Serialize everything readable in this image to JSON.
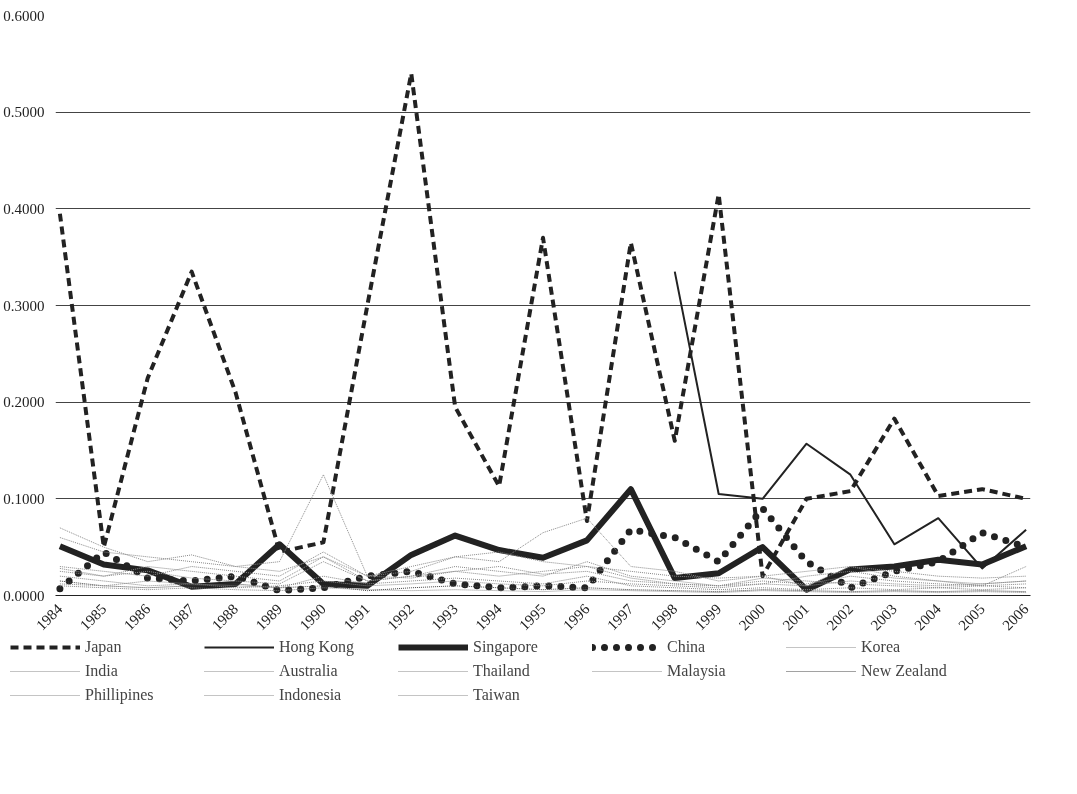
{
  "chart_data": {
    "type": "line",
    "categories": [
      "1984",
      "1985",
      "1986",
      "1987",
      "1988",
      "1989",
      "1990",
      "1991",
      "1992",
      "1993",
      "1994",
      "1995",
      "1996",
      "1997",
      "1998",
      "1999",
      "2000",
      "2001",
      "2002",
      "2003",
      "2004",
      "2005",
      "2006"
    ],
    "ylim": [
      0,
      0.6
    ],
    "yticks": [
      {
        "value": 0,
        "label": "0.0000"
      },
      {
        "value": 0.1,
        "label": "0.1000"
      },
      {
        "value": 0.2,
        "label": "0.2000"
      },
      {
        "value": 0.3,
        "label": "0.3000"
      },
      {
        "value": 0.4,
        "label": "0.4000"
      },
      {
        "value": 0.5,
        "label": "0.5000"
      },
      {
        "value": 0.6,
        "label": "0.6000"
      }
    ],
    "grid": "y",
    "legend": "bottom",
    "marker": "none",
    "series": [
      {
        "name": "Japan",
        "color": "#222222",
        "line_style": "dashed",
        "values": [
          0.395,
          0.05,
          0.225,
          0.335,
          0.21,
          0.045,
          0.055,
          0.3,
          0.54,
          0.195,
          0.113,
          0.37,
          0.077,
          0.365,
          0.16,
          0.415,
          0.02,
          0.1,
          0.108,
          0.183,
          0.103,
          0.11,
          0.1
        ]
      },
      {
        "name": "Hong Kong",
        "color": "#222222",
        "line_style": "solid",
        "values": [
          null,
          null,
          null,
          null,
          null,
          null,
          null,
          null,
          null,
          null,
          null,
          null,
          null,
          null,
          0.335,
          0.105,
          0.1,
          0.157,
          0.125,
          0.053,
          0.08,
          0.028,
          0.068
        ]
      },
      {
        "name": "Singapore",
        "color": "#222222",
        "line_style": "solid",
        "values": [
          0.051,
          0.032,
          0.026,
          0.009,
          0.012,
          0.053,
          0.012,
          0.01,
          0.042,
          0.062,
          0.047,
          0.039,
          0.057,
          0.11,
          0.018,
          0.023,
          0.05,
          0.006,
          0.027,
          0.03,
          0.037,
          0.032,
          0.051
        ]
      },
      {
        "name": "China",
        "color": "#222222",
        "line_style": "dotted",
        "values": [
          0.007,
          0.045,
          0.018,
          0.015,
          0.02,
          0.005,
          0.008,
          0.02,
          0.025,
          0.012,
          0.008,
          0.01,
          0.008,
          0.068,
          0.06,
          0.035,
          0.09,
          0.035,
          0.008,
          0.025,
          0.035,
          0.065,
          0.05
        ]
      },
      {
        "name": "Korea",
        "color": "#888888",
        "line_style": "dotted",
        "values": [
          0.07,
          0.05,
          0.035,
          0.042,
          0.03,
          0.035,
          0.125,
          0.02,
          0.025,
          0.04,
          0.035,
          0.065,
          0.08,
          0.03,
          0.025,
          0.015,
          0.02,
          0.01,
          0.03,
          0.02,
          0.015,
          0.01,
          0.03
        ]
      },
      {
        "name": "India",
        "color": "#888888",
        "line_style": "dotted",
        "values": [
          0.02,
          0.015,
          0.01,
          0.012,
          0.008,
          0.01,
          0.015,
          0.01,
          0.012,
          0.015,
          0.012,
          0.01,
          0.015,
          0.012,
          0.01,
          0.008,
          0.012,
          0.01,
          0.015,
          0.012,
          0.01,
          0.012,
          0.015
        ]
      },
      {
        "name": "Australia",
        "color": "#888888",
        "line_style": "dotted",
        "values": [
          0.06,
          0.045,
          0.04,
          0.035,
          0.03,
          0.025,
          0.04,
          0.02,
          0.03,
          0.04,
          0.045,
          0.035,
          0.03,
          0.025,
          0.02,
          0.018,
          0.02,
          0.025,
          0.03,
          0.025,
          0.02,
          0.018,
          0.02
        ]
      },
      {
        "name": "Thailand",
        "color": "#888888",
        "line_style": "dotted",
        "values": [
          0.025,
          0.02,
          0.03,
          0.025,
          0.02,
          0.015,
          0.04,
          0.015,
          0.02,
          0.03,
          0.025,
          0.02,
          0.035,
          0.02,
          0.015,
          0.01,
          0.015,
          0.012,
          0.02,
          0.015,
          0.012,
          0.01,
          0.012
        ]
      },
      {
        "name": "Malaysia",
        "color": "#888888",
        "line_style": "dotted",
        "values": [
          0.03,
          0.025,
          0.02,
          0.03,
          0.025,
          0.02,
          0.045,
          0.02,
          0.018,
          0.025,
          0.02,
          0.025,
          0.03,
          0.018,
          0.012,
          0.01,
          0.018,
          0.015,
          0.012,
          0.01,
          0.008,
          0.01,
          0.008
        ]
      },
      {
        "name": "New Zealand",
        "color": "#444444",
        "line_style": "dotted",
        "values": [
          0.015,
          0.01,
          0.008,
          0.01,
          0.012,
          0.008,
          0.01,
          0.005,
          0.008,
          0.01,
          0.008,
          0.006,
          0.008,
          0.006,
          0.005,
          0.004,
          0.006,
          0.005,
          0.004,
          0.005,
          0.004,
          0.005,
          0.004
        ]
      },
      {
        "name": "Phillipines",
        "color": "#888888",
        "line_style": "dotted",
        "values": [
          0.01,
          0.008,
          0.006,
          0.008,
          0.006,
          0.005,
          0.008,
          0.006,
          0.005,
          0.006,
          0.005,
          0.004,
          0.006,
          0.005,
          0.004,
          0.003,
          0.005,
          0.004,
          0.003,
          0.004,
          0.003,
          0.004,
          0.003
        ]
      },
      {
        "name": "Indonesia",
        "color": "#888888",
        "line_style": "dotted",
        "values": [
          0.012,
          0.01,
          0.015,
          0.012,
          0.01,
          0.008,
          0.02,
          0.012,
          0.015,
          0.018,
          0.015,
          0.012,
          0.02,
          0.01,
          0.008,
          0.006,
          0.008,
          0.006,
          0.008,
          0.006,
          0.008,
          0.006,
          0.008
        ]
      },
      {
        "name": "Taiwan",
        "color": "#888888",
        "line_style": "dotted",
        "values": [
          0.028,
          0.02,
          0.025,
          0.018,
          0.015,
          0.012,
          0.035,
          0.015,
          0.02,
          0.025,
          0.03,
          0.022,
          0.025,
          0.015,
          0.012,
          0.01,
          0.012,
          0.02,
          0.025,
          0.018,
          0.015,
          0.012,
          0.015
        ]
      }
    ]
  }
}
